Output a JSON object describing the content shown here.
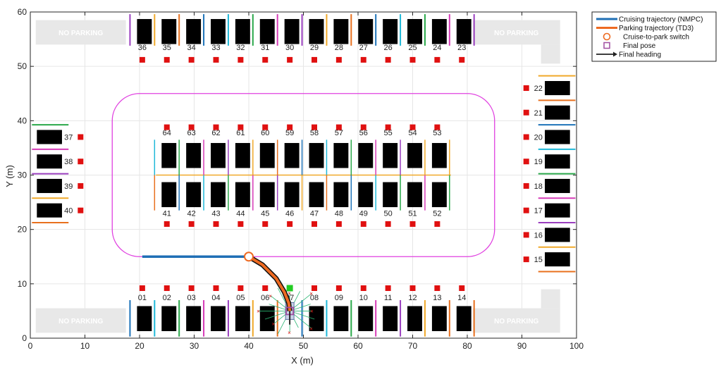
{
  "chart_data": {
    "type": "scatter",
    "xlabel": "X (m)",
    "ylabel": "Y (m)",
    "xlim": [
      0,
      100
    ],
    "ylim": [
      0,
      60
    ],
    "xticks": [
      0,
      10,
      20,
      30,
      40,
      50,
      60,
      70,
      80,
      90,
      100
    ],
    "yticks": [
      0,
      10,
      20,
      30,
      40,
      50,
      60
    ],
    "grid": true,
    "legend_position": "outside-top-right",
    "legend": [
      {
        "key": "cruise",
        "label": "Cruising trajectory (NMPC)",
        "color": "#1f6fb5",
        "marker": "line"
      },
      {
        "key": "park",
        "label": "Parking trajectory (TD3)",
        "color": "#ee6a21",
        "marker": "line"
      },
      {
        "key": "switch",
        "label": "Cruise-to-park switch",
        "color": "#ee6a21",
        "marker": "circle"
      },
      {
        "key": "final",
        "label": "Final pose",
        "color": "#a04fa0",
        "marker": "square"
      },
      {
        "key": "heading",
        "label": "Final heading",
        "color": "#222222",
        "marker": "arrow"
      }
    ],
    "no_parking_zones": [
      {
        "label": "NO PARKING",
        "x": [
          1,
          17.5
        ],
        "y": [
          54,
          58.5
        ]
      },
      {
        "label": "NO PARKING",
        "x": [
          81,
          97
        ],
        "y": [
          54,
          58.5
        ]
      },
      {
        "label": "NO PARKING",
        "x": [
          1,
          17.5
        ],
        "y": [
          1,
          5.5
        ]
      },
      {
        "label": "NO PARKING",
        "x": [
          81,
          97
        ],
        "y": [
          1,
          5.5
        ]
      }
    ],
    "track": {
      "color": "#e040e0",
      "x": [
        15,
        85
      ],
      "y": [
        15,
        45
      ],
      "corner_radius": 5
    },
    "cruising_trajectory": {
      "x": [
        20.5,
        40
      ],
      "y": [
        15,
        15
      ]
    },
    "parking_trajectory": {
      "x": [
        40,
        42.5,
        45,
        46.5,
        47.3,
        47.5
      ],
      "y": [
        15,
        13.5,
        11,
        8.5,
        6.5,
        5
      ]
    },
    "switch_point": {
      "x": 40,
      "y": 15
    },
    "final_pose": {
      "x": 47.5,
      "y": 5
    },
    "final_heading": {
      "x": 47.5,
      "y": 5,
      "dx": 0,
      "dy": -2.5
    },
    "target_marker": {
      "x": 47.5,
      "y": 9.2,
      "color": "#22cc22"
    },
    "top_row": {
      "labels": [
        "36",
        "35",
        "34",
        "33",
        "32",
        "31",
        "30",
        "29",
        "28",
        "27",
        "26",
        "25",
        "24",
        "23"
      ],
      "x": [
        20.5,
        25,
        29.5,
        34,
        38.5,
        43,
        47.5,
        52,
        56.5,
        61,
        65.5,
        70,
        74.5,
        79
      ],
      "label_y": 53,
      "marker_y": 51.2
    },
    "bottom_row": {
      "labels": [
        "01",
        "02",
        "03",
        "04",
        "05",
        "06",
        "07",
        "08",
        "09",
        "10",
        "11",
        "12",
        "13",
        "14"
      ],
      "x": [
        20.5,
        25,
        29.5,
        34,
        38.5,
        43,
        47.5,
        52,
        56.5,
        61,
        65.5,
        70,
        74.5,
        79
      ],
      "label_y": 7,
      "marker_y": 9.2
    },
    "center_upper_row": {
      "labels": [
        "64",
        "63",
        "62",
        "61",
        "60",
        "59",
        "58",
        "57",
        "56",
        "55",
        "54",
        "53"
      ],
      "x": [
        25,
        29.5,
        34,
        38.5,
        43,
        47.5,
        52,
        56.5,
        61,
        65.5,
        70,
        74.5
      ],
      "label_y": 37.3,
      "marker_y": 38.8
    },
    "center_lower_row": {
      "labels": [
        "41",
        "42",
        "43",
        "44",
        "45",
        "46",
        "47",
        "48",
        "49",
        "50",
        "51",
        "52"
      ],
      "x": [
        25,
        29.5,
        34,
        38.5,
        43,
        47.5,
        52,
        56.5,
        61,
        65.5,
        70,
        74.5
      ],
      "label_y": 22.5,
      "marker_y": 21
    },
    "left_column": {
      "labels": [
        "37",
        "38",
        "39",
        "40"
      ],
      "y": [
        37,
        32.5,
        28,
        23.5
      ],
      "label_x": 7,
      "marker_x": 9.2
    },
    "right_column": {
      "labels": [
        "22",
        "21",
        "20",
        "19",
        "18",
        "17",
        "16",
        "15"
      ],
      "y": [
        46,
        41.5,
        37,
        32.5,
        28,
        23.5,
        19,
        14.5
      ],
      "label_x": 93,
      "marker_x": 90.8
    },
    "colors": {
      "axis": "#262626",
      "grid": "#e6e6e6",
      "car": "#000000",
      "marker": "#e01010",
      "no_parking": "#e8e8e8",
      "divider_cycle": [
        "#9a3fbf",
        "#f0a92a",
        "#e8701e",
        "#1e73b8",
        "#1fb8d8",
        "#2aa84a",
        "#d63bb7"
      ]
    }
  }
}
